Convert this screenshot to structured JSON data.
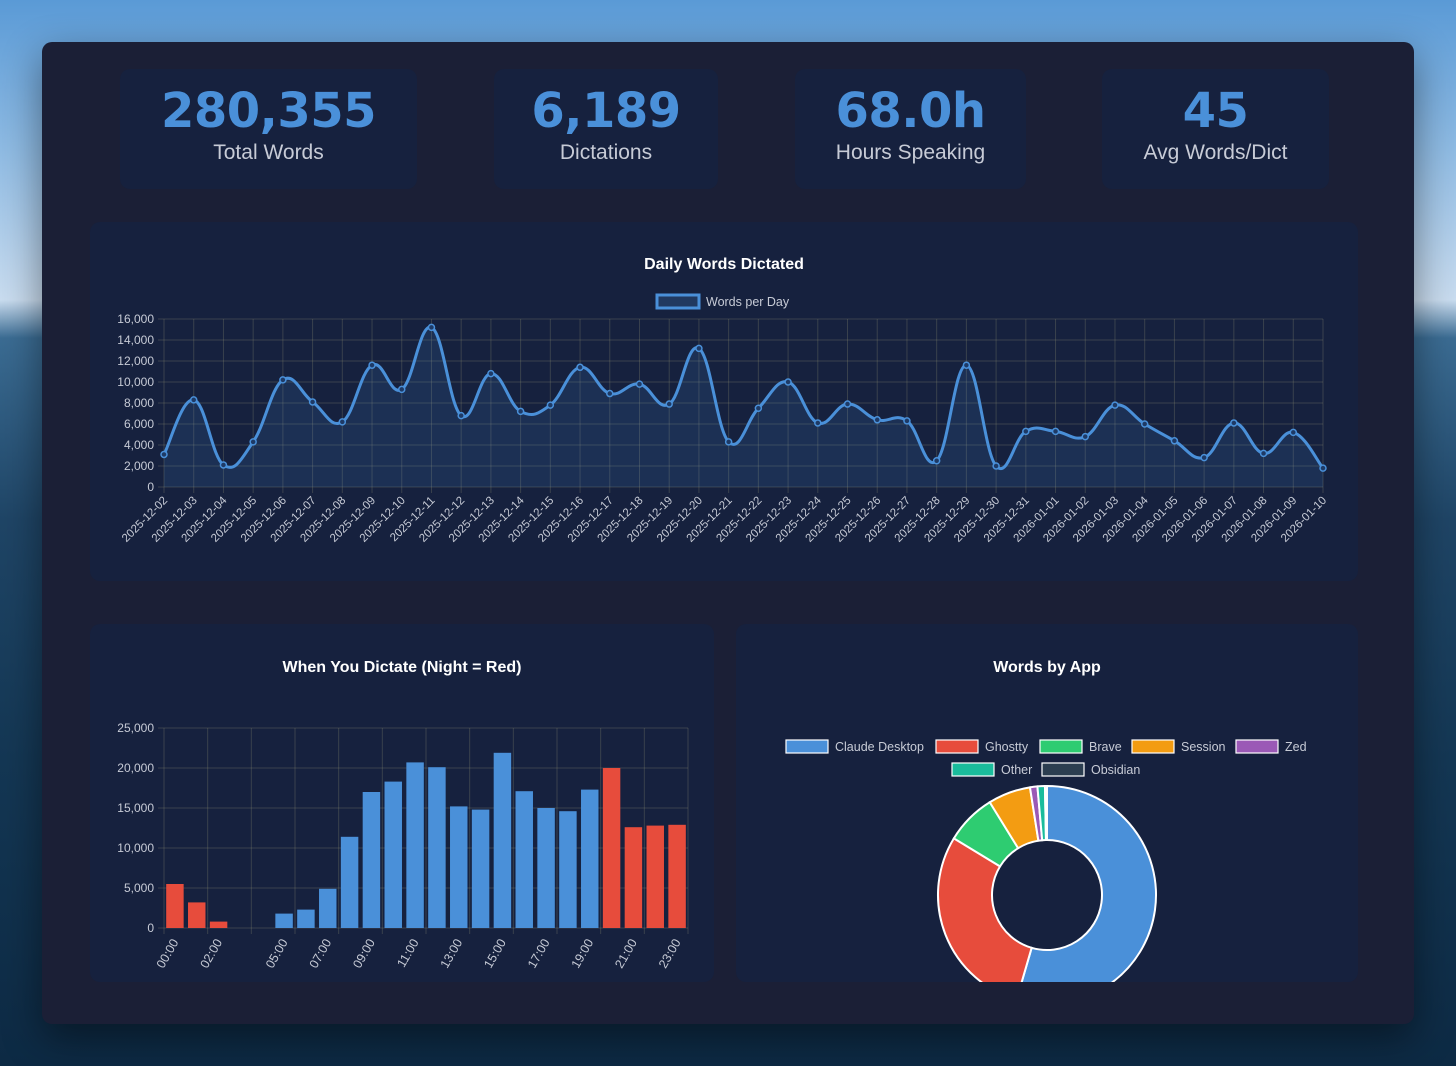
{
  "stats": [
    {
      "value": "280,355",
      "label": "Total Words"
    },
    {
      "value": "6,189",
      "label": "Dictations"
    },
    {
      "value": "68.0h",
      "label": "Hours Speaking"
    },
    {
      "value": "45",
      "label": "Avg Words/Dict"
    }
  ],
  "colors": {
    "blue": "#4a90d9",
    "red": "#e74c3c",
    "green": "#2ecc71",
    "orange": "#f39c12",
    "purple": "#9b59b6",
    "teal": "#1abc9c",
    "dark": "#2c3e50"
  },
  "chart_data": [
    {
      "type": "line",
      "title": "Daily Words Dictated",
      "legend": [
        "Words per Day"
      ],
      "legend_position": "top",
      "grid": true,
      "ylim": [
        0,
        16000
      ],
      "y_ticks": [
        "0",
        "2,000",
        "4,000",
        "6,000",
        "8,000",
        "10,000",
        "12,000",
        "14,000",
        "16,000"
      ],
      "x": [
        "2025-12-02",
        "2025-12-03",
        "2025-12-04",
        "2025-12-05",
        "2025-12-06",
        "2025-12-07",
        "2025-12-08",
        "2025-12-09",
        "2025-12-10",
        "2025-12-11",
        "2025-12-12",
        "2025-12-13",
        "2025-12-14",
        "2025-12-15",
        "2025-12-16",
        "2025-12-17",
        "2025-12-18",
        "2025-12-19",
        "2025-12-20",
        "2025-12-21",
        "2025-12-22",
        "2025-12-23",
        "2025-12-24",
        "2025-12-25",
        "2025-12-26",
        "2025-12-27",
        "2025-12-28",
        "2025-12-29",
        "2025-12-30",
        "2025-12-31",
        "2026-01-01",
        "2026-01-02",
        "2026-01-03",
        "2026-01-04",
        "2026-01-05",
        "2026-01-06",
        "2026-01-07",
        "2026-01-08",
        "2026-01-09",
        "2026-01-10"
      ],
      "series": [
        {
          "name": "Words per Day",
          "values": [
            3100,
            8300,
            2100,
            4300,
            10200,
            8100,
            6200,
            11600,
            9300,
            15200,
            6800,
            10800,
            7200,
            7800,
            11400,
            8900,
            9800,
            7900,
            13200,
            4300,
            7500,
            10000,
            6100,
            7900,
            6400,
            6300,
            2500,
            11600,
            2000,
            5300,
            5300,
            4800,
            7800,
            6000,
            4400,
            2800,
            6100,
            3200,
            5200,
            1800
          ]
        }
      ]
    },
    {
      "type": "bar",
      "title": "When You Dictate (Night = Red)",
      "grid": true,
      "ylim": [
        0,
        25000
      ],
      "y_ticks": [
        "0",
        "5,000",
        "10,000",
        "15,000",
        "20,000",
        "25,000"
      ],
      "categories": [
        "00:00",
        "01:00",
        "02:00",
        "03:00",
        "04:00",
        "05:00",
        "06:00",
        "07:00",
        "08:00",
        "09:00",
        "10:00",
        "11:00",
        "12:00",
        "13:00",
        "14:00",
        "15:00",
        "16:00",
        "17:00",
        "18:00",
        "19:00",
        "20:00",
        "21:00",
        "22:00",
        "23:00"
      ],
      "x_tick_labels": [
        "00:00",
        "02:00",
        "05:00",
        "07:00",
        "09:00",
        "11:00",
        "13:00",
        "15:00",
        "17:00",
        "19:00",
        "21:00",
        "23:00"
      ],
      "values": [
        5500,
        3200,
        800,
        0,
        0,
        1800,
        2300,
        4900,
        11400,
        17000,
        18300,
        20700,
        20100,
        15200,
        14800,
        21900,
        17100,
        15000,
        14600,
        17300,
        20000,
        12600,
        12800,
        12900
      ],
      "night_hours": [
        "00:00",
        "01:00",
        "02:00",
        "20:00",
        "21:00",
        "22:00",
        "23:00"
      ]
    },
    {
      "type": "pie",
      "variant": "doughnut",
      "title": "Words by App",
      "legend_position": "top",
      "labels": [
        "Claude Desktop",
        "Ghostty",
        "Brave",
        "Session",
        "Zed",
        "Other",
        "Obsidian"
      ],
      "values": [
        54.5,
        29.2,
        7.5,
        6.3,
        1.1,
        1.1,
        0.3
      ],
      "colors": [
        "#4a90d9",
        "#e74c3c",
        "#2ecc71",
        "#f39c12",
        "#9b59b6",
        "#1abc9c",
        "#2c3e50"
      ]
    }
  ]
}
